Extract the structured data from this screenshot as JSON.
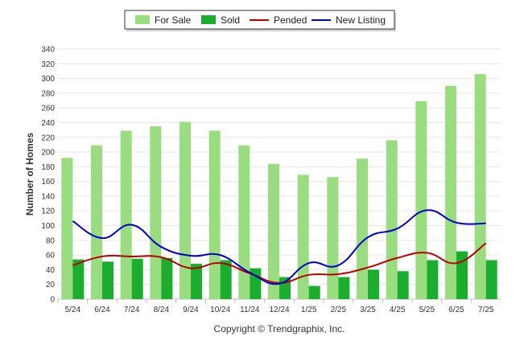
{
  "chart_data": {
    "type": "bar",
    "categories": [
      "5/24",
      "6/24",
      "7/24",
      "8/24",
      "9/24",
      "10/24",
      "11/24",
      "12/24",
      "1/25",
      "2/25",
      "3/25",
      "4/25",
      "5/25",
      "6/25",
      "7/25"
    ],
    "series": [
      {
        "name": "For Sale",
        "kind": "bar",
        "color": "#99dd80",
        "values": [
          192,
          209,
          229,
          235,
          241,
          229,
          209,
          184,
          169,
          166,
          191,
          216,
          269,
          290,
          306
        ]
      },
      {
        "name": "Sold",
        "kind": "bar",
        "color": "#1aad2e",
        "values": [
          54,
          51,
          55,
          56,
          48,
          53,
          42,
          30,
          18,
          30,
          40,
          38,
          53,
          65,
          53
        ]
      },
      {
        "name": "Pended",
        "kind": "line",
        "color": "#bb0000",
        "values": [
          46,
          58,
          58,
          57,
          42,
          49,
          35,
          22,
          33,
          34,
          43,
          56,
          63,
          49,
          76
        ]
      },
      {
        "name": "New Listing",
        "kind": "line",
        "color": "#0000cc",
        "values": [
          106,
          83,
          101,
          71,
          59,
          60,
          36,
          21,
          49,
          46,
          84,
          96,
          121,
          104,
          103
        ]
      }
    ],
    "ylabel": "Number of Homes",
    "ylim": [
      0,
      340
    ],
    "yticks": [
      0,
      20,
      40,
      60,
      80,
      100,
      120,
      140,
      160,
      180,
      200,
      220,
      240,
      260,
      280,
      300,
      320,
      340
    ],
    "grid": true,
    "legend_position": "top-center",
    "credit": "Copyright © Trendgraphix, Inc."
  }
}
